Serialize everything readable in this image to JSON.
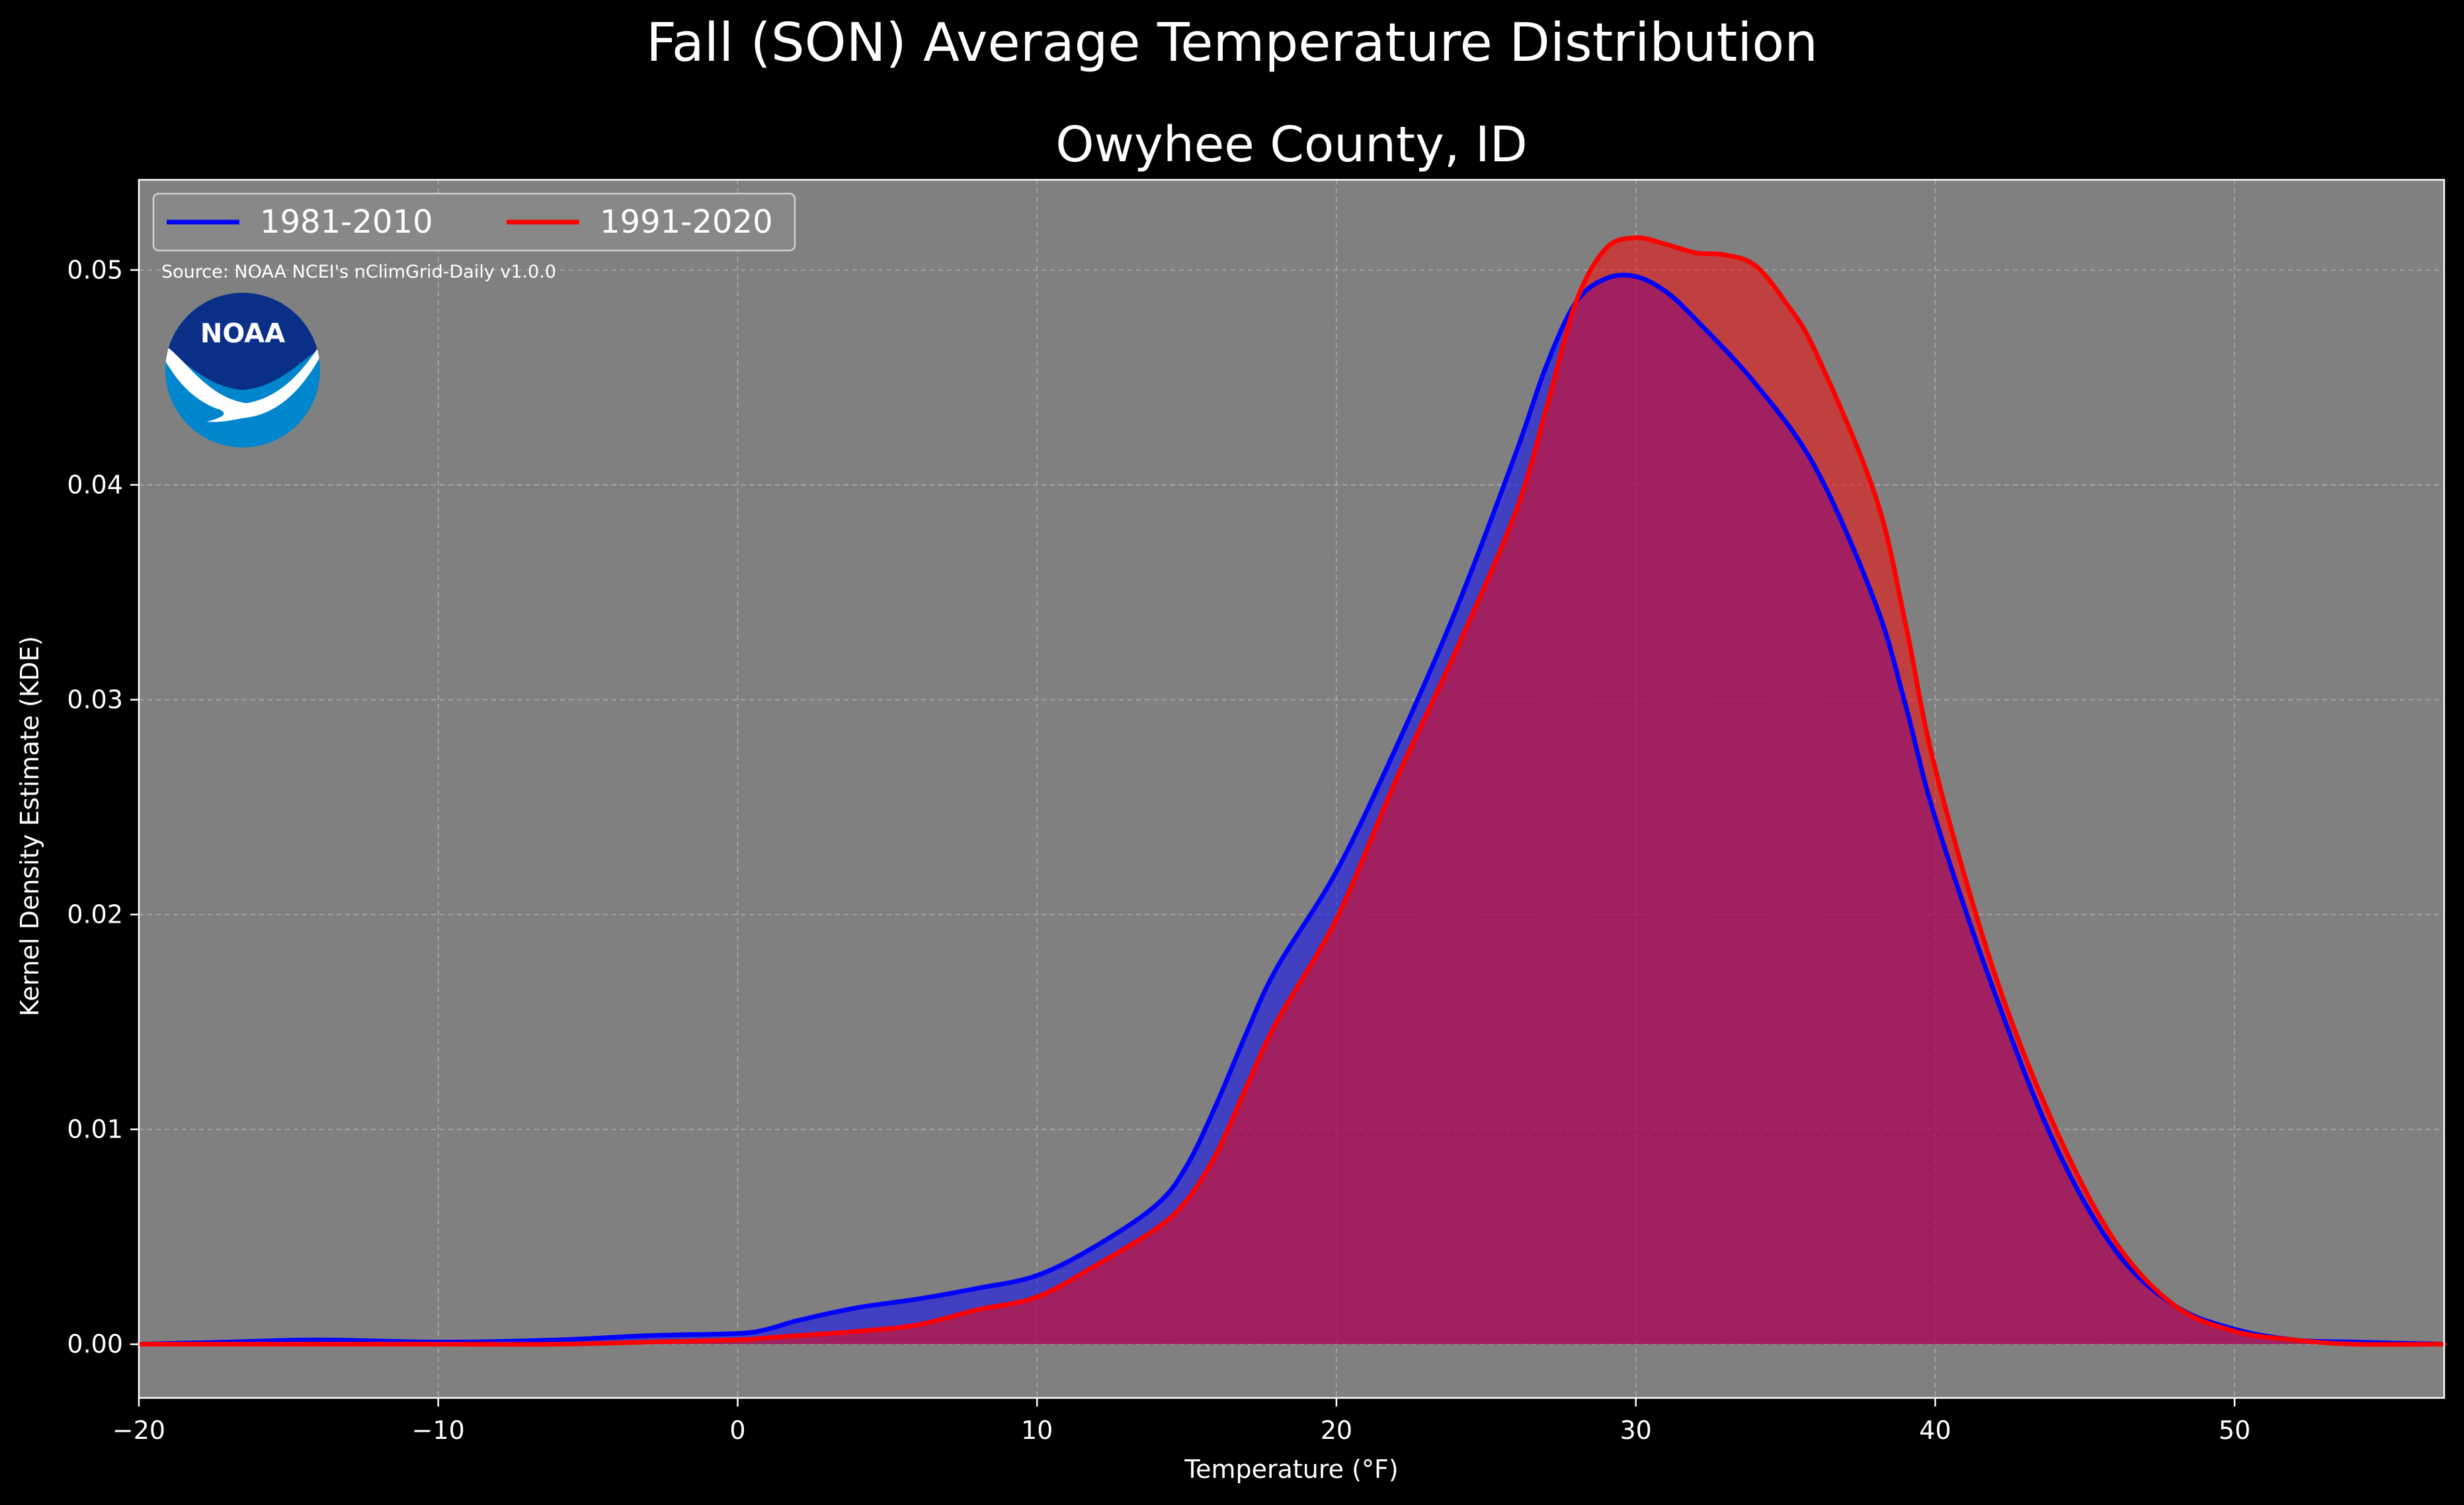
{
  "suptitle": "Fall (SON) Average Temperature Distribution",
  "subtitle": "Owyhee County, ID",
  "source_note": "Source: NOAA NCEI's nClimGrid-Daily v1.0.0",
  "logo_text": "NOAA",
  "colors": {
    "background": "#000000",
    "plot_bg": "#808080",
    "grid": "#b9b9b9",
    "series_1981": "#0000ff",
    "series_1991": "#ff0000",
    "fill_1981": "#0000ff",
    "fill_1991": "#ff0000",
    "logo_dark": "#0a2f86",
    "logo_light": "#0086cd"
  },
  "chart_data": {
    "type": "area",
    "title": "Owyhee County, ID",
    "xlabel": "Temperature ($^\\circ$F)",
    "xlabel_display": "Temperature (°F)",
    "ylabel": "Kernel Density Estimate (KDE)",
    "xlim": [
      -20,
      57
    ],
    "ylim": [
      -0.0025,
      0.0542
    ],
    "x_ticks": [
      -20,
      -10,
      0,
      10,
      20,
      30,
      40,
      50
    ],
    "x_tick_labels": [
      "−20",
      "−10",
      "0",
      "10",
      "20",
      "30",
      "40",
      "50"
    ],
    "y_ticks": [
      0.0,
      0.01,
      0.02,
      0.03,
      0.04,
      0.05
    ],
    "y_tick_labels": [
      "0.00",
      "0.01",
      "0.02",
      "0.03",
      "0.04",
      "0.05"
    ],
    "grid": true,
    "legend_position": "top-left",
    "series": [
      {
        "name": "1981-2010",
        "color": "#0000ff",
        "x": [
          -20,
          -17,
          -14,
          -10,
          -6,
          -3,
          0,
          1,
          2,
          4,
          6,
          8,
          10,
          12,
          14,
          15,
          16,
          17,
          18,
          20,
          22,
          24,
          26,
          27,
          28,
          29,
          30,
          31,
          32,
          34,
          36,
          38,
          39,
          40,
          42,
          44,
          46,
          48,
          50,
          52,
          54,
          57
        ],
        "y": [
          0.0,
          0.0001,
          0.0002,
          0.0001,
          0.0002,
          0.0004,
          0.0005,
          0.0007,
          0.0011,
          0.0017,
          0.0021,
          0.0026,
          0.0032,
          0.0046,
          0.0065,
          0.0083,
          0.0112,
          0.0145,
          0.0175,
          0.022,
          0.0278,
          0.0342,
          0.0415,
          0.0455,
          0.0485,
          0.0496,
          0.0497,
          0.049,
          0.0477,
          0.0447,
          0.0408,
          0.0345,
          0.0298,
          0.0245,
          0.0163,
          0.0093,
          0.0044,
          0.0018,
          0.0007,
          0.0002,
          0.0001,
          0.0
        ]
      },
      {
        "name": "1991-2020",
        "color": "#ff0000",
        "x": [
          -20,
          -17,
          -14,
          -10,
          -6,
          -3,
          0,
          1,
          2,
          4,
          6,
          8,
          10,
          12,
          14,
          15,
          16,
          17,
          18,
          20,
          22,
          24,
          26,
          27,
          28,
          29,
          30,
          31,
          32,
          33,
          34,
          35,
          36,
          38,
          39,
          40,
          42,
          44,
          46,
          48,
          50,
          52,
          54,
          57
        ],
        "y": [
          0.0,
          0.0,
          0.0,
          0.0,
          0.0,
          0.0001,
          0.0002,
          0.0003,
          0.0004,
          0.0006,
          0.0009,
          0.0016,
          0.0022,
          0.0037,
          0.0054,
          0.0067,
          0.0089,
          0.012,
          0.015,
          0.0198,
          0.0263,
          0.0323,
          0.0388,
          0.0435,
          0.0485,
          0.051,
          0.0515,
          0.0512,
          0.0508,
          0.0507,
          0.0502,
          0.0485,
          0.0462,
          0.0395,
          0.0336,
          0.0268,
          0.0172,
          0.0101,
          0.0048,
          0.0018,
          0.0006,
          0.0002,
          0.0,
          0.0
        ]
      }
    ]
  }
}
